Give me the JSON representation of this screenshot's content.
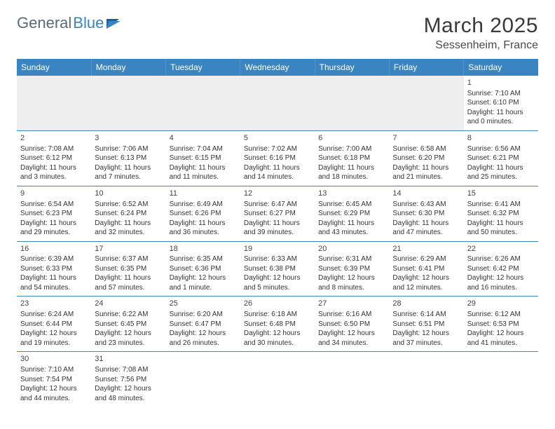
{
  "logo": {
    "textA": "General",
    "textB": "Blue"
  },
  "title": "March 2025",
  "location": "Sessenheim, France",
  "colors": {
    "header_bg": "#3a84c2",
    "header_text": "#ffffff",
    "border": "#3a84c2",
    "blank_fill": "#eeeeee",
    "text": "#333333",
    "logo_gray": "#5a6a78",
    "logo_blue": "#3a84c2"
  },
  "week_headers": [
    "Sunday",
    "Monday",
    "Tuesday",
    "Wednesday",
    "Thursday",
    "Friday",
    "Saturday"
  ],
  "layout": {
    "columns": 7,
    "rows": 6,
    "blanks_before": 6,
    "blanks_after": 5
  },
  "typography": {
    "title_pt": 30,
    "location_pt": 16,
    "th_pt": 12,
    "cell_pt": 10,
    "daynum_pt": 11
  },
  "days": [
    {
      "n": 1,
      "sunrise": "7:10 AM",
      "sunset": "6:10 PM",
      "daylight": "11 hours and 0 minutes."
    },
    {
      "n": 2,
      "sunrise": "7:08 AM",
      "sunset": "6:12 PM",
      "daylight": "11 hours and 3 minutes."
    },
    {
      "n": 3,
      "sunrise": "7:06 AM",
      "sunset": "6:13 PM",
      "daylight": "11 hours and 7 minutes."
    },
    {
      "n": 4,
      "sunrise": "7:04 AM",
      "sunset": "6:15 PM",
      "daylight": "11 hours and 11 minutes."
    },
    {
      "n": 5,
      "sunrise": "7:02 AM",
      "sunset": "6:16 PM",
      "daylight": "11 hours and 14 minutes."
    },
    {
      "n": 6,
      "sunrise": "7:00 AM",
      "sunset": "6:18 PM",
      "daylight": "11 hours and 18 minutes."
    },
    {
      "n": 7,
      "sunrise": "6:58 AM",
      "sunset": "6:20 PM",
      "daylight": "11 hours and 21 minutes."
    },
    {
      "n": 8,
      "sunrise": "6:56 AM",
      "sunset": "6:21 PM",
      "daylight": "11 hours and 25 minutes."
    },
    {
      "n": 9,
      "sunrise": "6:54 AM",
      "sunset": "6:23 PM",
      "daylight": "11 hours and 29 minutes."
    },
    {
      "n": 10,
      "sunrise": "6:52 AM",
      "sunset": "6:24 PM",
      "daylight": "11 hours and 32 minutes."
    },
    {
      "n": 11,
      "sunrise": "6:49 AM",
      "sunset": "6:26 PM",
      "daylight": "11 hours and 36 minutes."
    },
    {
      "n": 12,
      "sunrise": "6:47 AM",
      "sunset": "6:27 PM",
      "daylight": "11 hours and 39 minutes."
    },
    {
      "n": 13,
      "sunrise": "6:45 AM",
      "sunset": "6:29 PM",
      "daylight": "11 hours and 43 minutes."
    },
    {
      "n": 14,
      "sunrise": "6:43 AM",
      "sunset": "6:30 PM",
      "daylight": "11 hours and 47 minutes."
    },
    {
      "n": 15,
      "sunrise": "6:41 AM",
      "sunset": "6:32 PM",
      "daylight": "11 hours and 50 minutes."
    },
    {
      "n": 16,
      "sunrise": "6:39 AM",
      "sunset": "6:33 PM",
      "daylight": "11 hours and 54 minutes."
    },
    {
      "n": 17,
      "sunrise": "6:37 AM",
      "sunset": "6:35 PM",
      "daylight": "11 hours and 57 minutes."
    },
    {
      "n": 18,
      "sunrise": "6:35 AM",
      "sunset": "6:36 PM",
      "daylight": "12 hours and 1 minute."
    },
    {
      "n": 19,
      "sunrise": "6:33 AM",
      "sunset": "6:38 PM",
      "daylight": "12 hours and 5 minutes."
    },
    {
      "n": 20,
      "sunrise": "6:31 AM",
      "sunset": "6:39 PM",
      "daylight": "12 hours and 8 minutes."
    },
    {
      "n": 21,
      "sunrise": "6:29 AM",
      "sunset": "6:41 PM",
      "daylight": "12 hours and 12 minutes."
    },
    {
      "n": 22,
      "sunrise": "6:26 AM",
      "sunset": "6:42 PM",
      "daylight": "12 hours and 16 minutes."
    },
    {
      "n": 23,
      "sunrise": "6:24 AM",
      "sunset": "6:44 PM",
      "daylight": "12 hours and 19 minutes."
    },
    {
      "n": 24,
      "sunrise": "6:22 AM",
      "sunset": "6:45 PM",
      "daylight": "12 hours and 23 minutes."
    },
    {
      "n": 25,
      "sunrise": "6:20 AM",
      "sunset": "6:47 PM",
      "daylight": "12 hours and 26 minutes."
    },
    {
      "n": 26,
      "sunrise": "6:18 AM",
      "sunset": "6:48 PM",
      "daylight": "12 hours and 30 minutes."
    },
    {
      "n": 27,
      "sunrise": "6:16 AM",
      "sunset": "6:50 PM",
      "daylight": "12 hours and 34 minutes."
    },
    {
      "n": 28,
      "sunrise": "6:14 AM",
      "sunset": "6:51 PM",
      "daylight": "12 hours and 37 minutes."
    },
    {
      "n": 29,
      "sunrise": "6:12 AM",
      "sunset": "6:53 PM",
      "daylight": "12 hours and 41 minutes."
    },
    {
      "n": 30,
      "sunrise": "7:10 AM",
      "sunset": "7:54 PM",
      "daylight": "12 hours and 44 minutes."
    },
    {
      "n": 31,
      "sunrise": "7:08 AM",
      "sunset": "7:56 PM",
      "daylight": "12 hours and 48 minutes."
    }
  ],
  "labels": {
    "sunrise": "Sunrise: ",
    "sunset": "Sunset: ",
    "daylight": "Daylight: "
  }
}
